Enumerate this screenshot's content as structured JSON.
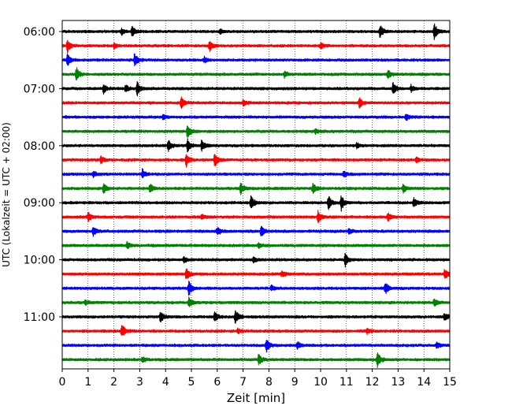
{
  "chart_data": {
    "type": "line",
    "title": "",
    "xlabel": "Zeit  [min]",
    "ylabel": "UTC (Lokalzeit = UTC + 02:00)",
    "xlim": [
      0,
      15
    ],
    "x_ticks": [
      0,
      1,
      2,
      3,
      4,
      5,
      6,
      7,
      8,
      9,
      10,
      11,
      12,
      13,
      14,
      15
    ],
    "x_tick_labels": [
      "0",
      "1",
      "2",
      "3",
      "4",
      "5",
      "6",
      "7",
      "8",
      "9",
      "10",
      "11",
      "12",
      "13",
      "14",
      "15"
    ],
    "y_tick_labels": [
      "06:00",
      "07:00",
      "08:00",
      "09:00",
      "10:00",
      "11:00"
    ],
    "y_tick_rows": [
      0,
      4,
      8,
      12,
      16,
      20
    ],
    "row_start_times": [
      "06:00",
      "06:15",
      "06:30",
      "06:45",
      "07:00",
      "07:15",
      "07:30",
      "07:45",
      "08:00",
      "08:15",
      "08:30",
      "08:45",
      "09:00",
      "09:15",
      "09:30",
      "09:45",
      "10:00",
      "10:15",
      "10:30",
      "10:45",
      "11:00",
      "11:15",
      "11:30",
      "11:45"
    ],
    "row_minutes": 15,
    "color_cycle": [
      "#000000",
      "#ff0000",
      "#0000ff",
      "#008000"
    ],
    "grid": "vertical dotted lines at each minute",
    "legend": "none",
    "series": [
      {
        "row": 0,
        "color": "#000000",
        "events": [
          [
            2.7,
            0.6
          ],
          [
            12.3,
            0.8
          ],
          [
            14.4,
            1.0
          ],
          [
            6.1,
            0.35
          ],
          [
            2.3,
            0.35
          ]
        ]
      },
      {
        "row": 1,
        "color": "#ff0000",
        "events": [
          [
            0.2,
            0.8
          ],
          [
            5.7,
            0.7
          ],
          [
            10.0,
            0.4
          ],
          [
            2.0,
            0.35
          ]
        ]
      },
      {
        "row": 2,
        "color": "#0000ff",
        "events": [
          [
            0.2,
            0.75
          ],
          [
            2.8,
            0.8
          ],
          [
            5.5,
            0.35
          ]
        ]
      },
      {
        "row": 3,
        "color": "#008000",
        "events": [
          [
            0.55,
            0.9
          ],
          [
            12.6,
            0.55
          ],
          [
            8.6,
            0.35
          ]
        ]
      },
      {
        "row": 4,
        "color": "#000000",
        "events": [
          [
            1.6,
            0.55
          ],
          [
            2.45,
            0.55
          ],
          [
            2.9,
            0.85
          ],
          [
            12.8,
            0.8
          ],
          [
            13.5,
            0.45
          ]
        ]
      },
      {
        "row": 5,
        "color": "#ff0000",
        "events": [
          [
            4.6,
            0.75
          ],
          [
            11.5,
            0.7
          ],
          [
            7.0,
            0.35
          ]
        ]
      },
      {
        "row": 6,
        "color": "#0000ff",
        "events": [
          [
            13.3,
            0.45
          ],
          [
            3.9,
            0.3
          ]
        ]
      },
      {
        "row": 7,
        "color": "#008000",
        "events": [
          [
            4.85,
            0.95
          ],
          [
            9.8,
            0.3
          ]
        ]
      },
      {
        "row": 8,
        "color": "#000000",
        "events": [
          [
            4.1,
            0.7
          ],
          [
            4.85,
            0.85
          ],
          [
            5.4,
            0.7
          ],
          [
            11.4,
            0.35
          ]
        ]
      },
      {
        "row": 9,
        "color": "#ff0000",
        "events": [
          [
            4.8,
            0.85
          ],
          [
            5.9,
            0.95
          ],
          [
            1.5,
            0.5
          ],
          [
            13.7,
            0.35
          ]
        ]
      },
      {
        "row": 10,
        "color": "#0000ff",
        "events": [
          [
            3.1,
            0.6
          ],
          [
            1.2,
            0.4
          ],
          [
            10.9,
            0.35
          ]
        ]
      },
      {
        "row": 11,
        "color": "#008000",
        "events": [
          [
            1.6,
            0.65
          ],
          [
            3.4,
            0.7
          ],
          [
            6.9,
            0.75
          ],
          [
            9.7,
            0.6
          ],
          [
            13.2,
            0.5
          ]
        ]
      },
      {
        "row": 12,
        "color": "#000000",
        "events": [
          [
            7.3,
            0.95
          ],
          [
            10.3,
            0.9
          ],
          [
            10.8,
            1.0
          ],
          [
            13.6,
            0.6
          ]
        ]
      },
      {
        "row": 13,
        "color": "#ff0000",
        "events": [
          [
            1.0,
            0.55
          ],
          [
            9.9,
            0.75
          ],
          [
            12.6,
            0.6
          ],
          [
            5.4,
            0.35
          ]
        ]
      },
      {
        "row": 14,
        "color": "#0000ff",
        "events": [
          [
            1.2,
            0.6
          ],
          [
            6.0,
            0.55
          ],
          [
            7.7,
            0.75
          ],
          [
            11.1,
            0.35
          ]
        ]
      },
      {
        "row": 15,
        "color": "#008000",
        "events": [
          [
            2.5,
            0.45
          ],
          [
            7.6,
            0.35
          ]
        ]
      },
      {
        "row": 16,
        "color": "#000000",
        "events": [
          [
            10.95,
            0.85
          ],
          [
            4.7,
            0.35
          ],
          [
            7.4,
            0.35
          ]
        ]
      },
      {
        "row": 17,
        "color": "#ff0000",
        "events": [
          [
            4.8,
            0.8
          ],
          [
            14.8,
            0.7
          ],
          [
            8.5,
            0.35
          ]
        ]
      },
      {
        "row": 18,
        "color": "#0000ff",
        "events": [
          [
            4.9,
            1.0
          ],
          [
            12.5,
            0.85
          ],
          [
            8.1,
            0.35
          ]
        ]
      },
      {
        "row": 19,
        "color": "#008000",
        "events": [
          [
            4.9,
            0.6
          ],
          [
            14.4,
            0.5
          ],
          [
            0.9,
            0.3
          ]
        ]
      },
      {
        "row": 20,
        "color": "#000000",
        "events": [
          [
            3.8,
            0.7
          ],
          [
            5.9,
            0.6
          ],
          [
            6.7,
            0.95
          ],
          [
            14.8,
            0.55
          ]
        ]
      },
      {
        "row": 21,
        "color": "#ff0000",
        "events": [
          [
            2.3,
            0.95
          ],
          [
            6.8,
            0.35
          ],
          [
            11.8,
            0.3
          ]
        ]
      },
      {
        "row": 22,
        "color": "#0000ff",
        "events": [
          [
            7.9,
            0.85
          ],
          [
            9.1,
            0.45
          ],
          [
            14.5,
            0.35
          ]
        ]
      },
      {
        "row": 23,
        "color": "#008000",
        "events": [
          [
            7.6,
            0.75
          ],
          [
            12.2,
            0.95
          ],
          [
            3.1,
            0.35
          ]
        ]
      }
    ]
  }
}
